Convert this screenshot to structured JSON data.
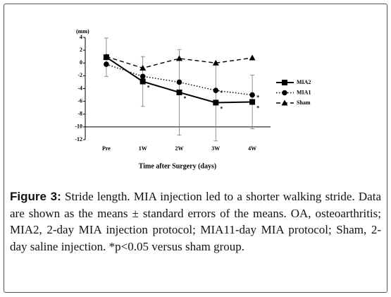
{
  "chart_data": {
    "type": "line",
    "y_label": "(mm)",
    "x_label": "Time after Surgery (days)",
    "categories": [
      "Pre",
      "1W",
      "2W",
      "3W",
      "4W"
    ],
    "series": [
      {
        "name": "MIA2",
        "color": "#000000",
        "line_style": "solid",
        "marker": "square",
        "values": [
          0.9,
          -2.9,
          -4.6,
          -6.2,
          -6.1
        ],
        "errors": [
          3.0,
          3.9,
          6.7,
          6.0,
          4.2
        ]
      },
      {
        "name": "MIA1",
        "color": "#000000",
        "line_style": "dotted",
        "marker": "circle",
        "values": [
          -0.2,
          -2.1,
          -3.0,
          -4.3,
          -5.0
        ]
      },
      {
        "name": "Sham",
        "color": "#000000",
        "line_style": "dashed",
        "marker": "triangle",
        "values": [
          1.0,
          -0.8,
          0.7,
          0.0,
          0.8
        ]
      }
    ],
    "annotations": [
      {
        "text": "*",
        "series": 0,
        "index": 1
      },
      {
        "text": "*",
        "series": 0,
        "index": 2
      },
      {
        "text": "*",
        "series": 0,
        "index": 3
      },
      {
        "text": "*",
        "series": 1,
        "index": 3
      },
      {
        "text": "*",
        "series": 0,
        "index": 4
      },
      {
        "text": "*",
        "series": 1,
        "index": 4
      }
    ],
    "ylim": [
      -12,
      4
    ],
    "yticks": [
      -12,
      -10,
      -8,
      -6,
      -4,
      -2,
      0,
      2,
      4
    ],
    "reference_lines": [
      -10
    ],
    "legend": "right"
  },
  "caption": {
    "label": "Figure 3:",
    "text": "Stride length. MIA injection led to a shorter walking stride. Data are shown as the means ± standard errors of the means. OA, osteoarthritis; MIA2, 2-day MIA injection protocol; MIA11-day MIA protocol; Sham, 2-day saline injection. *p<0.05 versus sham group."
  }
}
